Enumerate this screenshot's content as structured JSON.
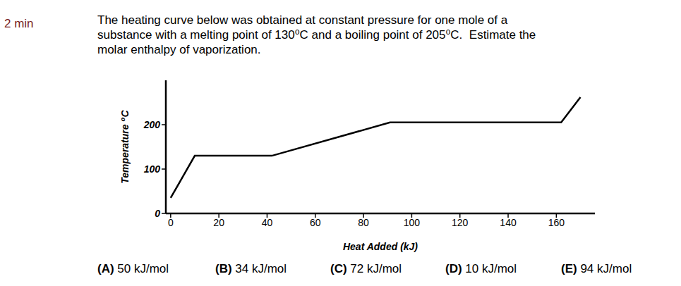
{
  "document": {
    "timer": "2 min",
    "question": [
      "The heating curve below was obtained at constant pressure for one mole of a",
      "substance with a melting point of 130⁰C and a boiling point of 205⁰C.  Estimate the",
      "molar enthalpy of vaporization."
    ],
    "choices": [
      {
        "letter": "(A)",
        "text": "50 kJ/mol"
      },
      {
        "letter": "(B)",
        "text": "34 kJ/mol"
      },
      {
        "letter": "(C)",
        "text": "72 kJ/mol"
      },
      {
        "letter": "(D)",
        "text": "10 kJ/mol"
      },
      {
        "letter": "(E)",
        "text": "94 kJ/mol"
      }
    ]
  },
  "chart_data": {
    "type": "line",
    "x_label": "Heat Added (kJ)",
    "y_label": "Temperature ⁰C",
    "x": [
      0,
      10,
      42,
      91,
      162,
      170
    ],
    "values": [
      35,
      130,
      130,
      205,
      205,
      262
    ],
    "color": "#000000",
    "xlim": [
      -2,
      176
    ],
    "xticks": [
      0,
      20,
      40,
      60,
      80,
      100,
      120,
      140,
      160
    ],
    "ylim": [
      0,
      300
    ],
    "yticks": [
      0,
      100,
      200
    ],
    "grid": false
  }
}
